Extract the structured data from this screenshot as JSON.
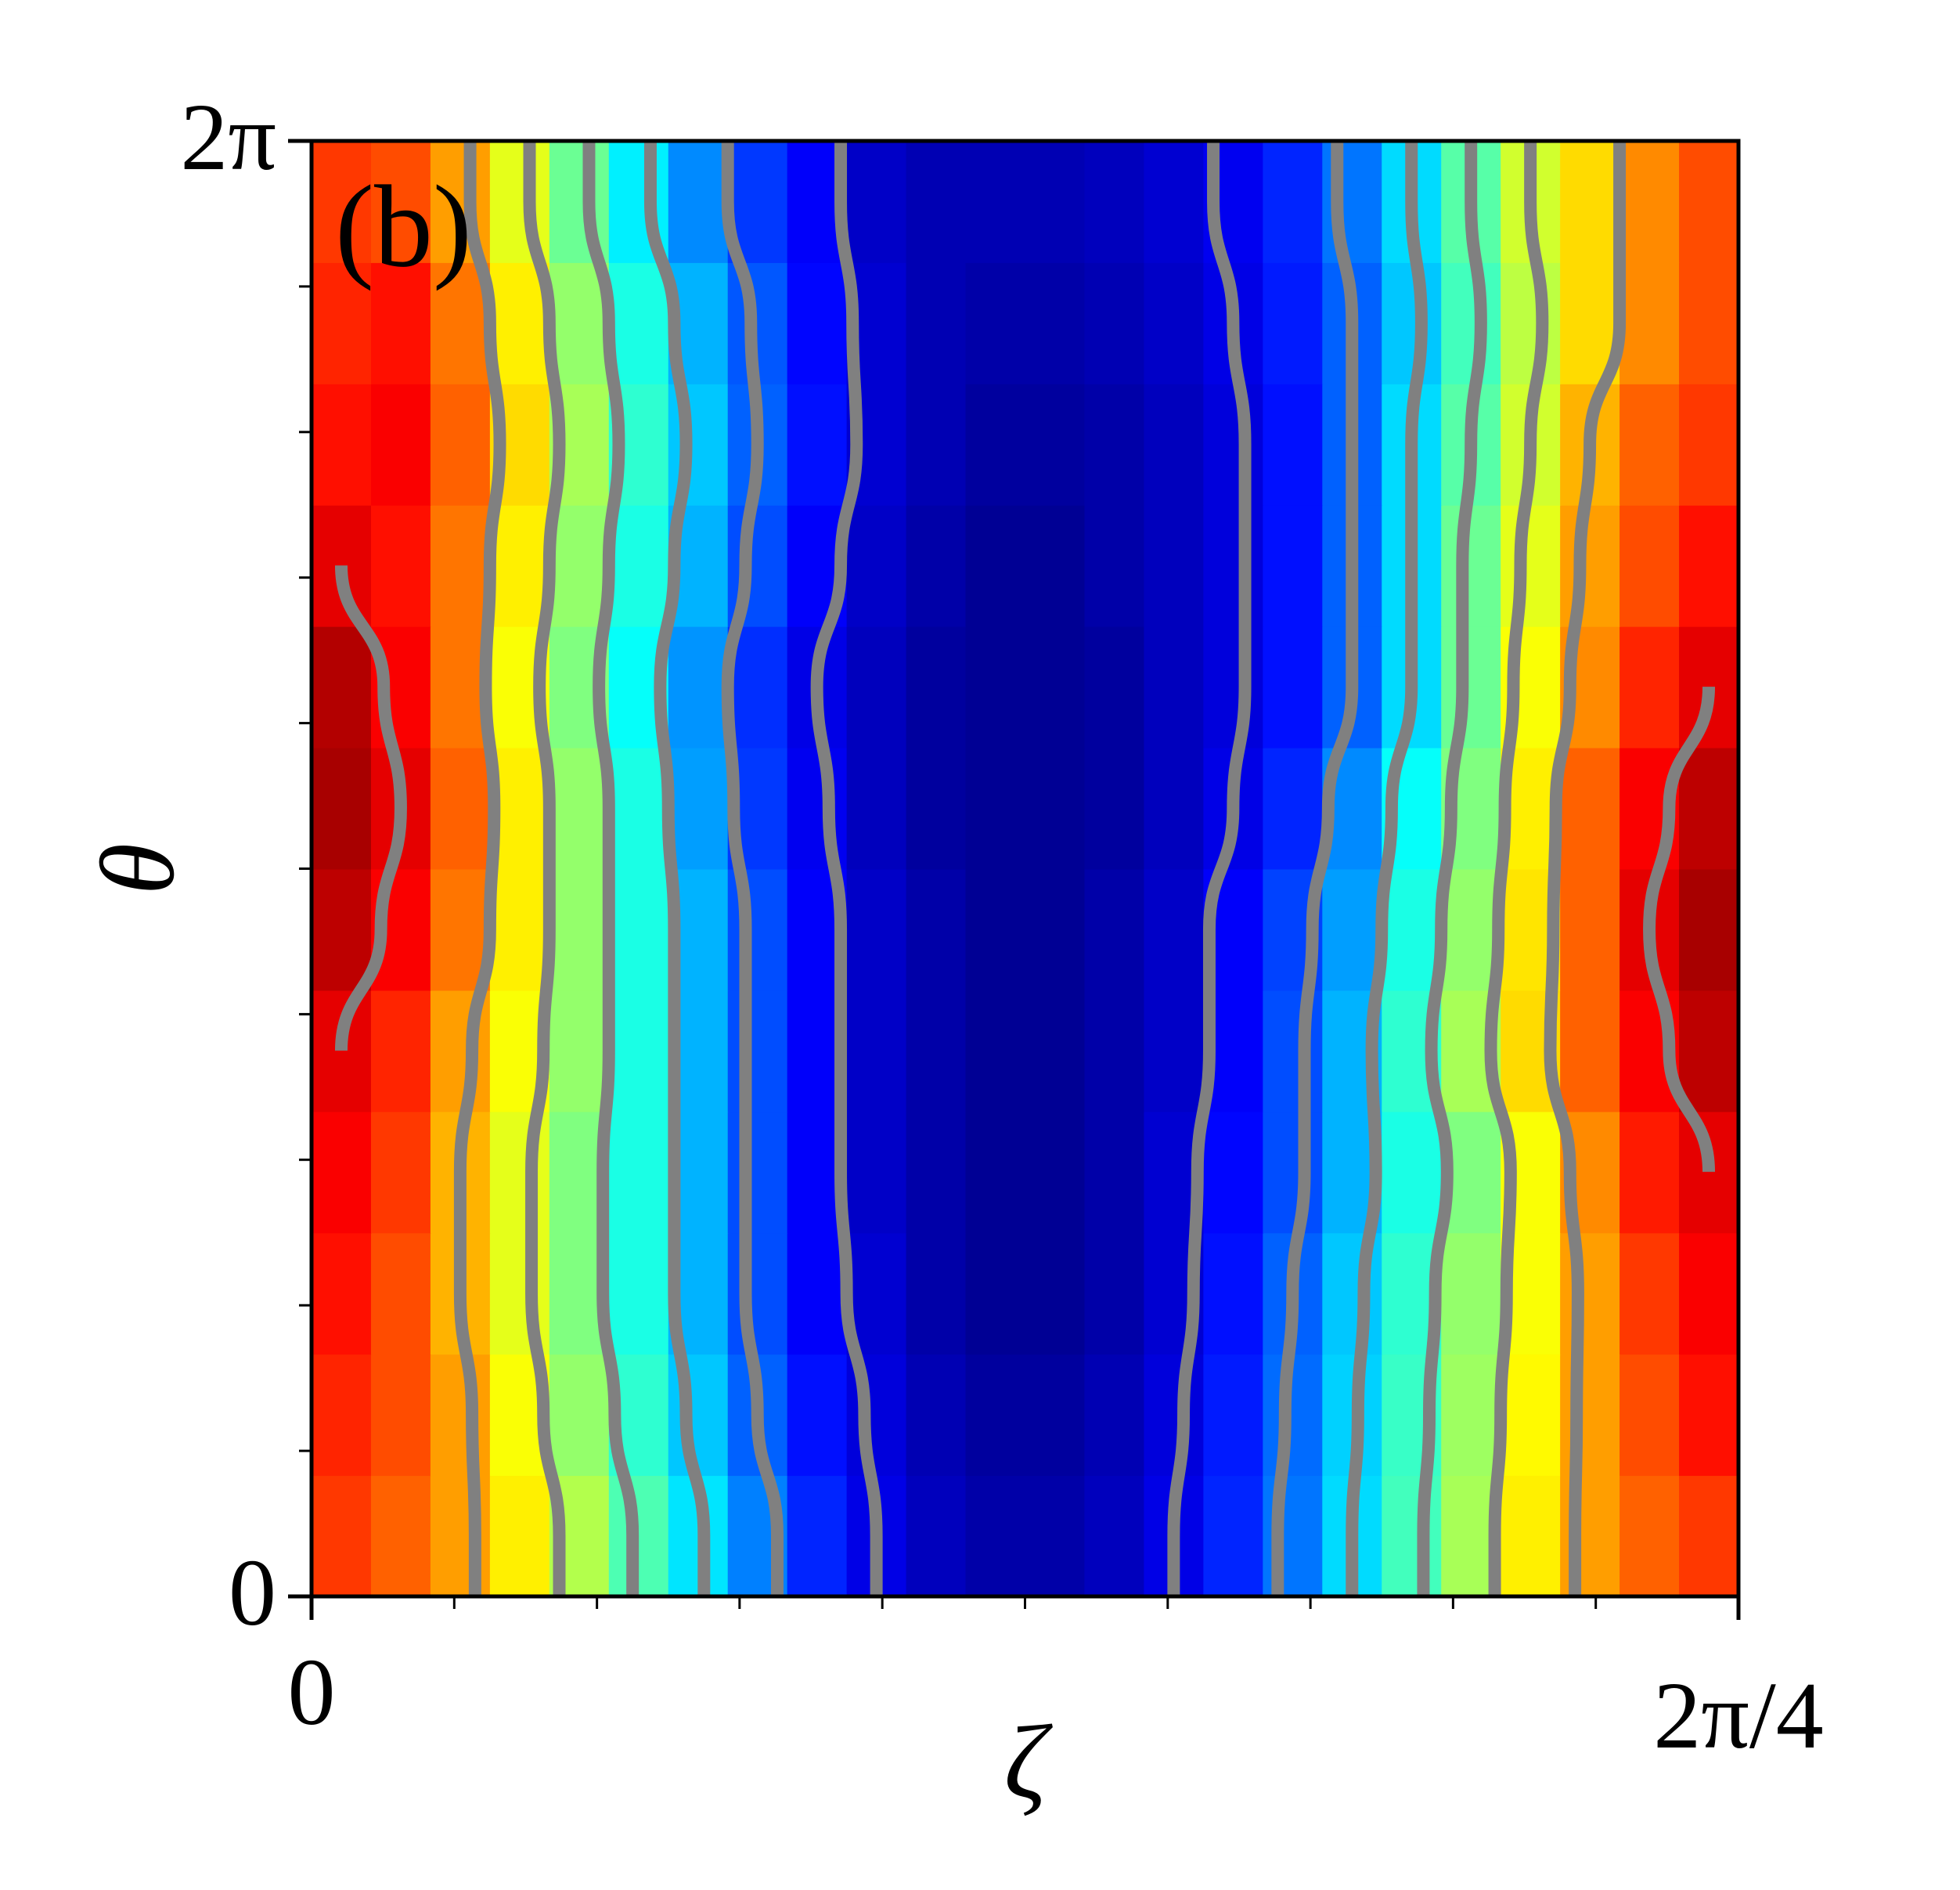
{
  "chart_data": {
    "type": "heatmap",
    "panel_label": "(b)",
    "x_label": "ζ",
    "y_label": "θ",
    "xlim": [
      0,
      1.5707963267948966
    ],
    "ylim": [
      0,
      6.283185307179586
    ],
    "xticks": [
      0,
      {
        "value": 1.5707963267948966,
        "label": "2π/4"
      }
    ],
    "yticks": [
      0,
      {
        "value": 6.283185307179586,
        "label": "2π"
      }
    ],
    "xminorticks": [
      0.1571,
      0.3142,
      0.4712,
      0.6283,
      0.7854,
      0.9425,
      1.0996,
      1.2566,
      1.4137
    ],
    "yminorticks": [
      0.6283,
      1.2566,
      1.885,
      2.5133,
      3.1416,
      3.7699,
      4.3982,
      5.0265,
      5.6549
    ],
    "colormap": "jet",
    "contour_color": "#808080",
    "contour_levels": [
      0.1,
      0.22,
      0.34,
      0.46,
      0.58,
      0.7,
      0.9
    ],
    "z": [
      [
        0.82,
        0.78,
        0.72,
        0.64,
        0.55,
        0.45,
        0.35,
        0.25,
        0.16,
        0.1,
        0.06,
        0.04,
        0.04,
        0.06,
        0.1,
        0.16,
        0.24,
        0.34,
        0.44,
        0.54,
        0.64,
        0.72,
        0.78,
        0.82
      ],
      [
        0.84,
        0.8,
        0.72,
        0.62,
        0.52,
        0.42,
        0.32,
        0.22,
        0.14,
        0.09,
        0.05,
        0.03,
        0.03,
        0.05,
        0.09,
        0.15,
        0.23,
        0.33,
        0.43,
        0.53,
        0.63,
        0.72,
        0.8,
        0.86
      ],
      [
        0.86,
        0.8,
        0.7,
        0.6,
        0.5,
        0.4,
        0.3,
        0.2,
        0.12,
        0.08,
        0.04,
        0.02,
        0.02,
        0.04,
        0.08,
        0.14,
        0.22,
        0.32,
        0.42,
        0.52,
        0.62,
        0.72,
        0.82,
        0.88
      ],
      [
        0.88,
        0.82,
        0.7,
        0.6,
        0.5,
        0.4,
        0.3,
        0.2,
        0.12,
        0.07,
        0.04,
        0.02,
        0.02,
        0.04,
        0.08,
        0.13,
        0.2,
        0.3,
        0.4,
        0.5,
        0.62,
        0.74,
        0.85,
        0.9
      ],
      [
        0.9,
        0.84,
        0.72,
        0.62,
        0.52,
        0.4,
        0.3,
        0.2,
        0.12,
        0.07,
        0.04,
        0.02,
        0.02,
        0.04,
        0.07,
        0.12,
        0.2,
        0.3,
        0.42,
        0.54,
        0.66,
        0.78,
        0.88,
        0.94
      ],
      [
        0.94,
        0.88,
        0.76,
        0.64,
        0.52,
        0.4,
        0.3,
        0.2,
        0.12,
        0.07,
        0.04,
        0.02,
        0.02,
        0.04,
        0.07,
        0.12,
        0.19,
        0.28,
        0.4,
        0.52,
        0.65,
        0.78,
        0.9,
        0.96
      ],
      [
        0.96,
        0.9,
        0.78,
        0.64,
        0.52,
        0.4,
        0.28,
        0.18,
        0.11,
        0.06,
        0.03,
        0.02,
        0.02,
        0.03,
        0.06,
        0.1,
        0.16,
        0.26,
        0.38,
        0.5,
        0.64,
        0.78,
        0.88,
        0.94
      ],
      [
        0.95,
        0.88,
        0.76,
        0.62,
        0.5,
        0.38,
        0.27,
        0.17,
        0.1,
        0.06,
        0.03,
        0.02,
        0.02,
        0.03,
        0.06,
        0.09,
        0.14,
        0.22,
        0.34,
        0.48,
        0.62,
        0.74,
        0.84,
        0.9
      ],
      [
        0.9,
        0.86,
        0.76,
        0.64,
        0.52,
        0.4,
        0.3,
        0.2,
        0.12,
        0.07,
        0.04,
        0.02,
        0.02,
        0.04,
        0.06,
        0.09,
        0.14,
        0.22,
        0.34,
        0.48,
        0.6,
        0.72,
        0.8,
        0.86
      ],
      [
        0.86,
        0.88,
        0.78,
        0.66,
        0.54,
        0.42,
        0.32,
        0.22,
        0.14,
        0.08,
        0.05,
        0.03,
        0.03,
        0.04,
        0.06,
        0.09,
        0.14,
        0.22,
        0.34,
        0.46,
        0.58,
        0.7,
        0.78,
        0.82
      ],
      [
        0.84,
        0.86,
        0.76,
        0.64,
        0.52,
        0.4,
        0.3,
        0.21,
        0.13,
        0.08,
        0.05,
        0.04,
        0.04,
        0.05,
        0.07,
        0.1,
        0.15,
        0.22,
        0.32,
        0.44,
        0.56,
        0.66,
        0.74,
        0.8
      ],
      [
        0.82,
        0.8,
        0.72,
        0.6,
        0.48,
        0.36,
        0.26,
        0.18,
        0.12,
        0.07,
        0.05,
        0.05,
        0.05,
        0.06,
        0.08,
        0.11,
        0.16,
        0.24,
        0.34,
        0.46,
        0.58,
        0.66,
        0.74,
        0.8
      ]
    ]
  }
}
